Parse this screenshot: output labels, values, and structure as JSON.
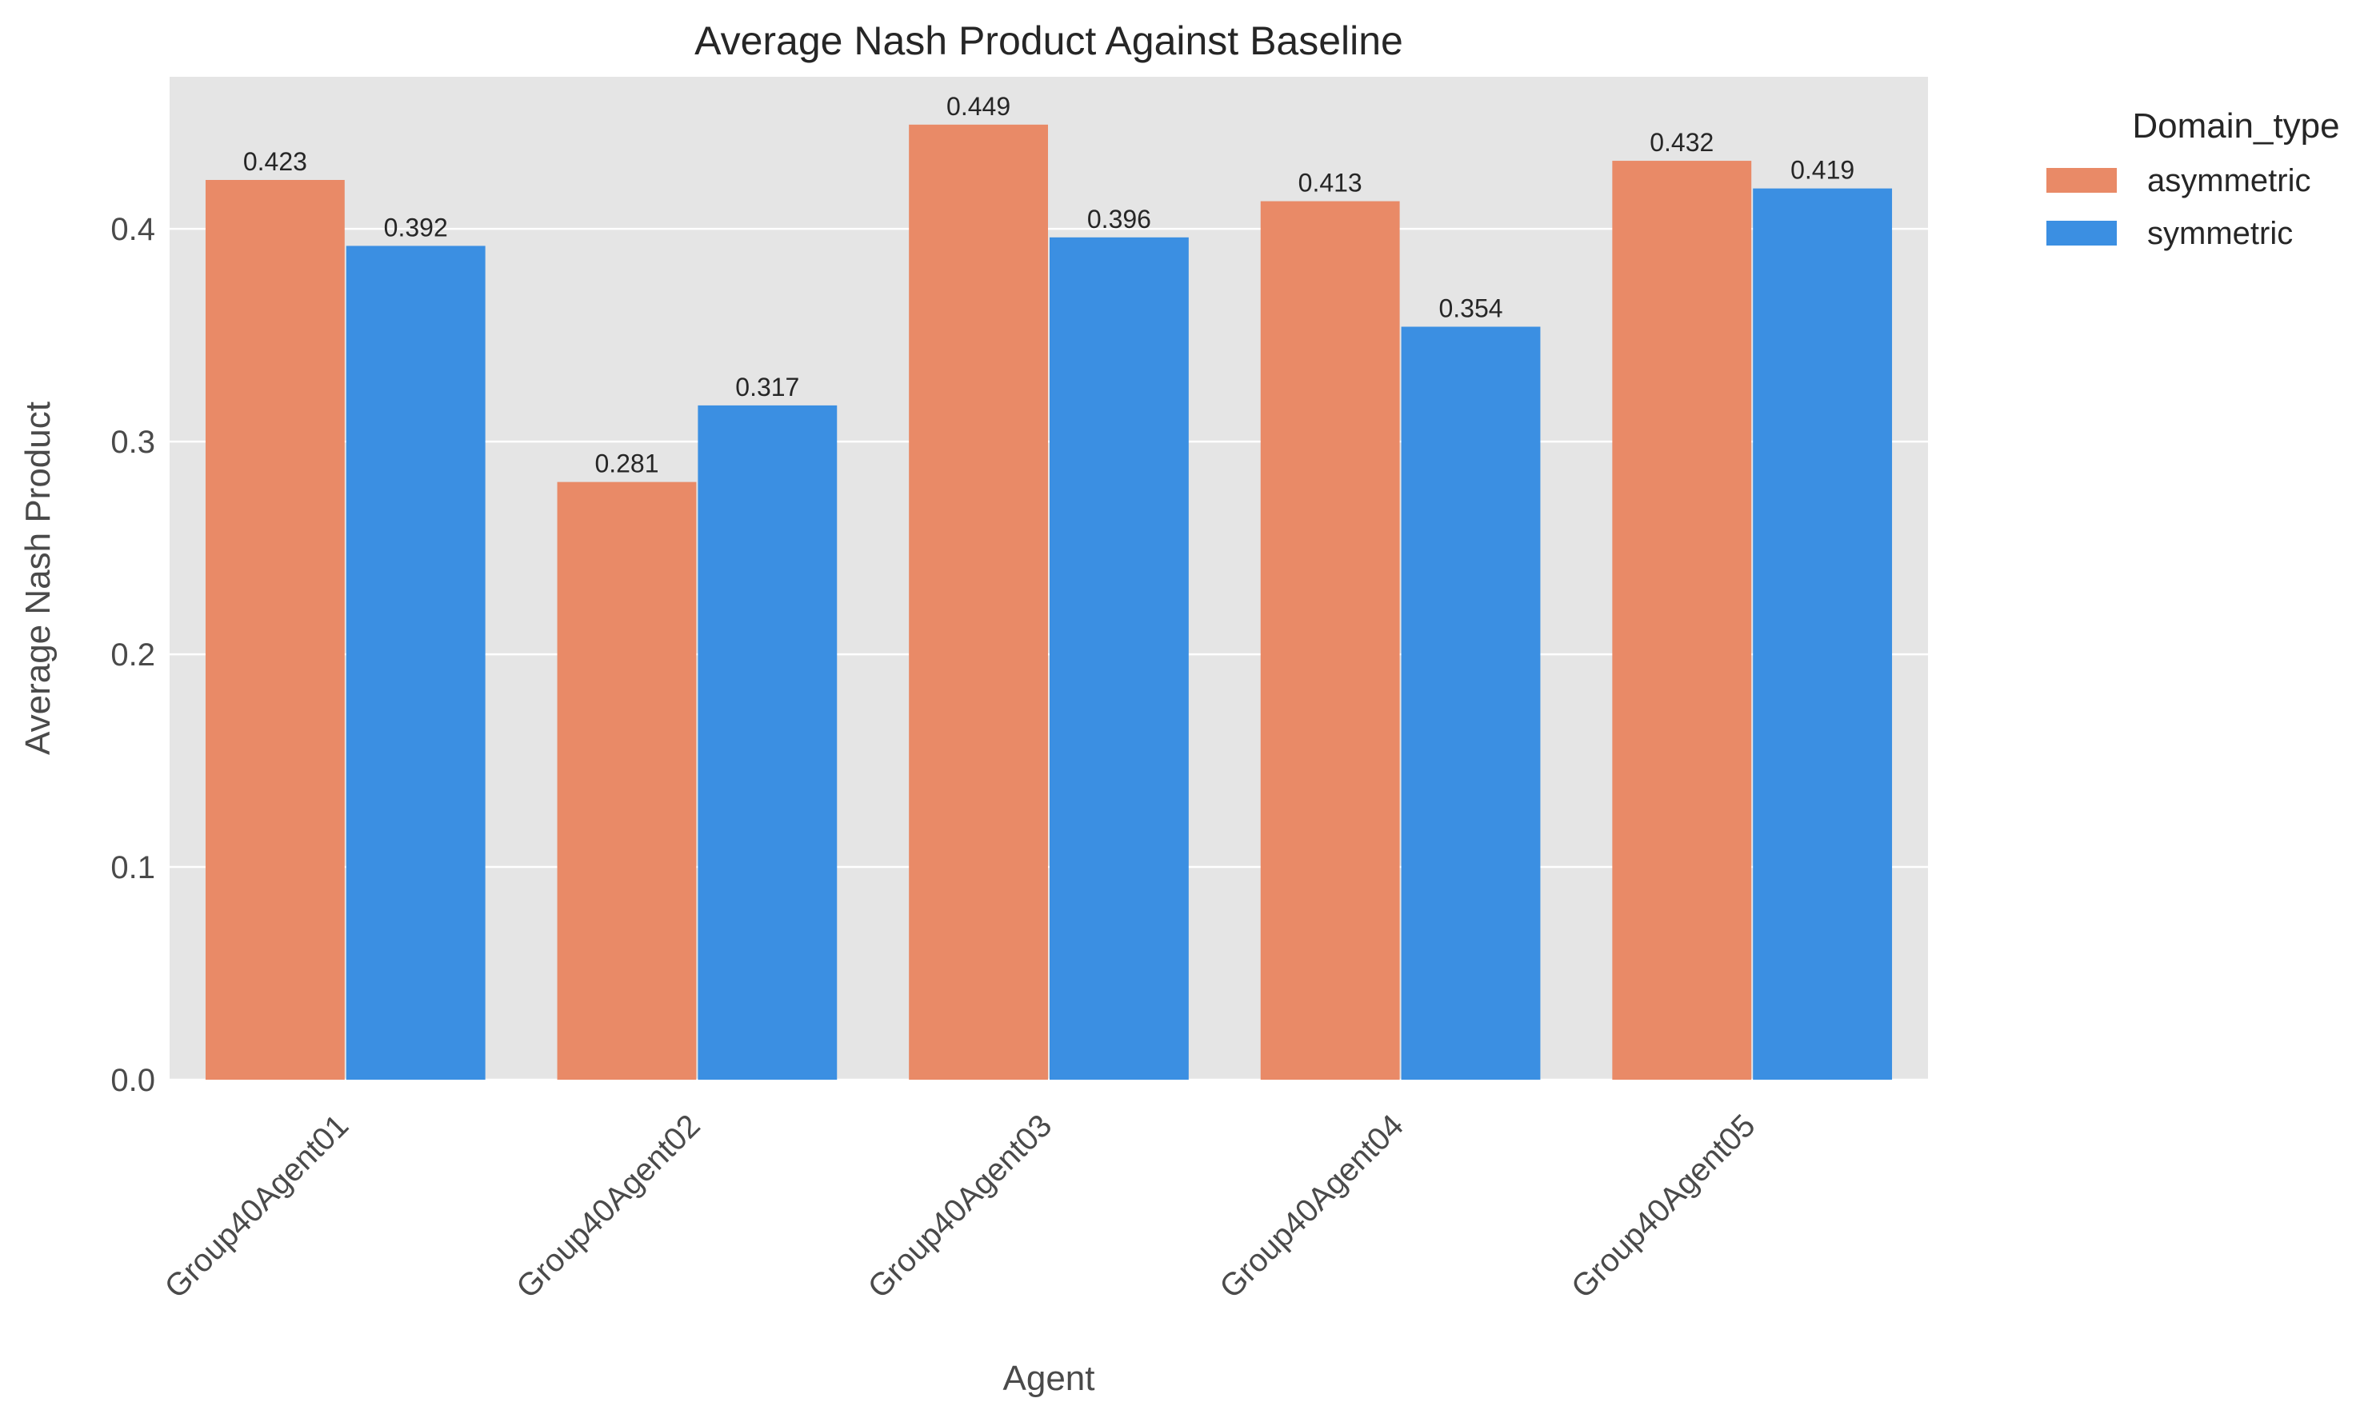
{
  "chart_data": {
    "type": "bar",
    "title": "Average Nash Product Against Baseline",
    "xlabel": "Agent",
    "ylabel": "Average Nash Product",
    "categories": [
      "Group40Agent01",
      "Group40Agent02",
      "Group40Agent03",
      "Group40Agent04",
      "Group40Agent05"
    ],
    "series": [
      {
        "name": "asymmetric",
        "color": "#E98A67",
        "values": [
          0.423,
          0.281,
          0.449,
          0.413,
          0.432
        ],
        "labels": [
          "0.423",
          "0.281",
          "0.449",
          "0.413",
          "0.432"
        ]
      },
      {
        "name": "symmetric",
        "color": "#3B8FE2",
        "values": [
          0.392,
          0.317,
          0.396,
          0.354,
          0.419
        ],
        "labels": [
          "0.392",
          "0.317",
          "0.396",
          "0.354",
          "0.419"
        ]
      }
    ],
    "ylim": [
      0,
      0.4715
    ],
    "yticks": [
      0.0,
      0.1,
      0.2,
      0.3,
      0.4
    ],
    "ytick_labels": [
      "0.0",
      "0.1",
      "0.2",
      "0.3",
      "0.4"
    ],
    "grid": "horizontal",
    "background_color": "#E5E5E5",
    "legend": {
      "title": "Domain_type",
      "placement": "outside-top-right"
    }
  }
}
